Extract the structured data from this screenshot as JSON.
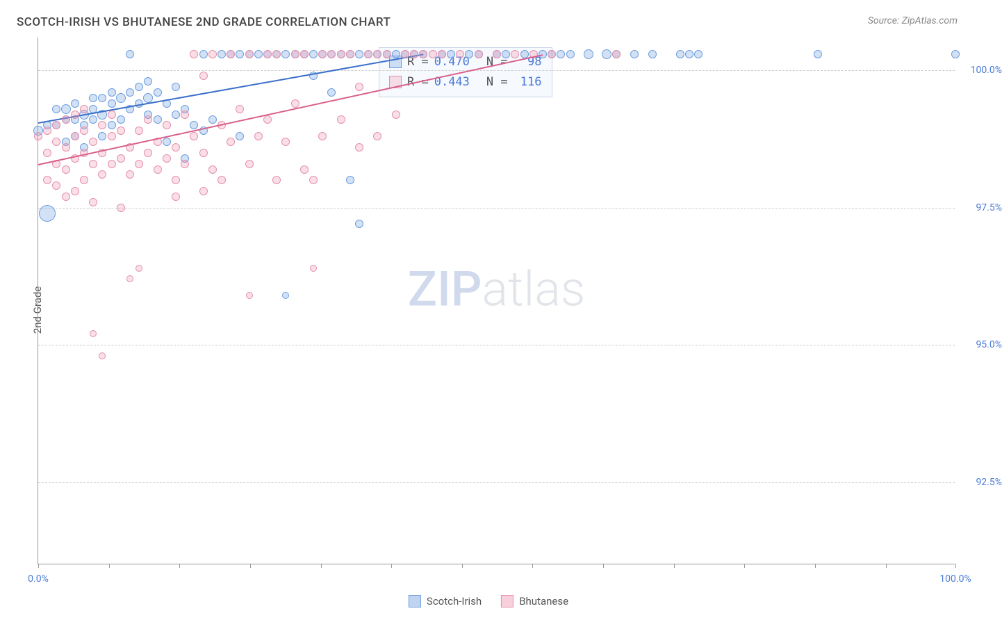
{
  "title": "SCOTCH-IRISH VS BHUTANESE 2ND GRADE CORRELATION CHART",
  "source_label": "Source: ZipAtlas.com",
  "y_axis_label": "2nd Grade",
  "watermark": {
    "part1": "ZIP",
    "part2": "atlas"
  },
  "chart": {
    "type": "scatter",
    "background_color": "#ffffff",
    "grid_color": "#cccccc",
    "axis_color": "#999999",
    "xlim": [
      0,
      100
    ],
    "ylim": [
      91.0,
      100.6
    ],
    "xticks": [
      0,
      7.7,
      15.4,
      23.1,
      30.8,
      38.5,
      46.2,
      53.9,
      61.6,
      69.3,
      77.0,
      84.7,
      92.4,
      100
    ],
    "xtick_labels": {
      "0": "0.0%",
      "100": "100.0%"
    },
    "yticks": [
      92.5,
      95.0,
      97.5,
      100.0
    ],
    "ytick_labels": [
      "92.5%",
      "95.0%",
      "97.5%",
      "100.0%"
    ],
    "tick_label_color": "#4a7bd8",
    "tick_label_fontsize": 14,
    "series": [
      {
        "name": "Scotch-Irish",
        "marker_fill": "rgba(130,170,225,0.35)",
        "marker_stroke": "#6c9de0",
        "trend_color": "#3a6fc9",
        "trend": {
          "x1": 0,
          "y1": 99.05,
          "x2": 42,
          "y2": 100.3
        },
        "stats": {
          "R": "0.470",
          "N": "98"
        },
        "points": [
          [
            0,
            98.9,
            14
          ],
          [
            1,
            97.4,
            24
          ],
          [
            1,
            99.0,
            12
          ],
          [
            2,
            99.0,
            12
          ],
          [
            2,
            99.3,
            12
          ],
          [
            3,
            98.7,
            12
          ],
          [
            3,
            99.1,
            12
          ],
          [
            3,
            99.3,
            14
          ],
          [
            4,
            98.8,
            12
          ],
          [
            4,
            99.1,
            12
          ],
          [
            4,
            99.4,
            12
          ],
          [
            5,
            98.6,
            12
          ],
          [
            5,
            99.0,
            12
          ],
          [
            5,
            99.2,
            14
          ],
          [
            6,
            99.1,
            12
          ],
          [
            6,
            99.3,
            12
          ],
          [
            6,
            99.5,
            12
          ],
          [
            7,
            98.8,
            12
          ],
          [
            7,
            99.2,
            14
          ],
          [
            7,
            99.5,
            12
          ],
          [
            8,
            99.0,
            12
          ],
          [
            8,
            99.4,
            12
          ],
          [
            8,
            99.6,
            12
          ],
          [
            9,
            99.1,
            12
          ],
          [
            9,
            99.5,
            14
          ],
          [
            10,
            99.3,
            12
          ],
          [
            10,
            99.6,
            12
          ],
          [
            10,
            100.3,
            12
          ],
          [
            11,
            99.4,
            12
          ],
          [
            11,
            99.7,
            12
          ],
          [
            12,
            99.2,
            12
          ],
          [
            12,
            99.5,
            14
          ],
          [
            12,
            99.8,
            12
          ],
          [
            13,
            99.1,
            12
          ],
          [
            13,
            99.6,
            12
          ],
          [
            14,
            98.7,
            12
          ],
          [
            14,
            99.4,
            12
          ],
          [
            15,
            99.2,
            12
          ],
          [
            15,
            99.7,
            12
          ],
          [
            16,
            98.4,
            12
          ],
          [
            16,
            99.3,
            12
          ],
          [
            17,
            99.0,
            12
          ],
          [
            18,
            98.9,
            12
          ],
          [
            18,
            100.3,
            12
          ],
          [
            19,
            99.1,
            12
          ],
          [
            20,
            100.3,
            12
          ],
          [
            21,
            100.3,
            12
          ],
          [
            22,
            98.8,
            12
          ],
          [
            22,
            100.3,
            12
          ],
          [
            23,
            100.3,
            12
          ],
          [
            24,
            100.3,
            12
          ],
          [
            25,
            100.3,
            12
          ],
          [
            26,
            100.3,
            12
          ],
          [
            27,
            95.9,
            10
          ],
          [
            27,
            100.3,
            12
          ],
          [
            28,
            100.3,
            12
          ],
          [
            29,
            100.3,
            12
          ],
          [
            30,
            99.9,
            12
          ],
          [
            30,
            100.3,
            12
          ],
          [
            31,
            100.3,
            12
          ],
          [
            32,
            99.6,
            12
          ],
          [
            32,
            100.3,
            12
          ],
          [
            33,
            100.3,
            12
          ],
          [
            34,
            98.0,
            12
          ],
          [
            34,
            100.3,
            12
          ],
          [
            35,
            97.2,
            12
          ],
          [
            35,
            100.3,
            12
          ],
          [
            36,
            100.3,
            12
          ],
          [
            37,
            100.3,
            12
          ],
          [
            38,
            100.3,
            12
          ],
          [
            39,
            100.3,
            12
          ],
          [
            40,
            100.3,
            12
          ],
          [
            41,
            100.3,
            12
          ],
          [
            42,
            100.3,
            12
          ],
          [
            44,
            100.3,
            12
          ],
          [
            45,
            100.3,
            12
          ],
          [
            47,
            100.3,
            12
          ],
          [
            48,
            100.3,
            12
          ],
          [
            50,
            100.3,
            12
          ],
          [
            51,
            100.3,
            12
          ],
          [
            53,
            100.3,
            12
          ],
          [
            55,
            100.3,
            12
          ],
          [
            56,
            100.3,
            12
          ],
          [
            57,
            100.3,
            12
          ],
          [
            58,
            100.3,
            12
          ],
          [
            60,
            100.3,
            14
          ],
          [
            62,
            100.3,
            14
          ],
          [
            63,
            100.3,
            12
          ],
          [
            65,
            100.3,
            12
          ],
          [
            67,
            100.3,
            12
          ],
          [
            70,
            100.3,
            12
          ],
          [
            71,
            100.3,
            12
          ],
          [
            72,
            100.3,
            12
          ],
          [
            85,
            100.3,
            12
          ],
          [
            100,
            100.3,
            12
          ]
        ]
      },
      {
        "name": "Bhutanese",
        "marker_fill": "rgba(240,150,175,0.30)",
        "marker_stroke": "#e590ab",
        "trend_color": "#d85f8a",
        "trend": {
          "x1": 0,
          "y1": 98.3,
          "x2": 55,
          "y2": 100.3
        },
        "stats": {
          "R": "0.443",
          "N": "116"
        },
        "points": [
          [
            0,
            98.8,
            12
          ],
          [
            1,
            98.0,
            12
          ],
          [
            1,
            98.5,
            12
          ],
          [
            1,
            98.9,
            12
          ],
          [
            2,
            97.9,
            12
          ],
          [
            2,
            98.3,
            12
          ],
          [
            2,
            98.7,
            12
          ],
          [
            2,
            99.0,
            12
          ],
          [
            3,
            97.7,
            12
          ],
          [
            3,
            98.2,
            12
          ],
          [
            3,
            98.6,
            12
          ],
          [
            3,
            99.1,
            12
          ],
          [
            4,
            97.8,
            12
          ],
          [
            4,
            98.4,
            12
          ],
          [
            4,
            98.8,
            12
          ],
          [
            4,
            99.2,
            12
          ],
          [
            5,
            98.0,
            12
          ],
          [
            5,
            98.5,
            12
          ],
          [
            5,
            98.9,
            12
          ],
          [
            5,
            99.3,
            12
          ],
          [
            6,
            95.2,
            10
          ],
          [
            6,
            97.6,
            12
          ],
          [
            6,
            98.3,
            12
          ],
          [
            6,
            98.7,
            12
          ],
          [
            7,
            94.8,
            10
          ],
          [
            7,
            98.1,
            12
          ],
          [
            7,
            98.5,
            12
          ],
          [
            7,
            99.0,
            12
          ],
          [
            8,
            98.3,
            12
          ],
          [
            8,
            98.8,
            12
          ],
          [
            8,
            99.2,
            12
          ],
          [
            9,
            97.5,
            12
          ],
          [
            9,
            98.4,
            12
          ],
          [
            9,
            98.9,
            12
          ],
          [
            10,
            96.2,
            10
          ],
          [
            10,
            98.1,
            12
          ],
          [
            10,
            98.6,
            12
          ],
          [
            11,
            98.3,
            12
          ],
          [
            11,
            98.9,
            12
          ],
          [
            11,
            96.4,
            10
          ],
          [
            12,
            98.5,
            12
          ],
          [
            12,
            99.1,
            12
          ],
          [
            13,
            98.2,
            12
          ],
          [
            13,
            98.7,
            12
          ],
          [
            14,
            98.4,
            12
          ],
          [
            14,
            99.0,
            12
          ],
          [
            15,
            98.0,
            12
          ],
          [
            15,
            97.7,
            12
          ],
          [
            15,
            98.6,
            12
          ],
          [
            16,
            98.3,
            12
          ],
          [
            16,
            99.2,
            12
          ],
          [
            17,
            98.8,
            12
          ],
          [
            17,
            100.3,
            12
          ],
          [
            18,
            97.8,
            12
          ],
          [
            18,
            98.5,
            12
          ],
          [
            18,
            99.9,
            12
          ],
          [
            19,
            98.2,
            12
          ],
          [
            19,
            100.3,
            12
          ],
          [
            20,
            98.0,
            12
          ],
          [
            20,
            99.0,
            12
          ],
          [
            21,
            98.7,
            12
          ],
          [
            21,
            100.3,
            12
          ],
          [
            22,
            99.3,
            12
          ],
          [
            23,
            95.9,
            10
          ],
          [
            23,
            98.3,
            12
          ],
          [
            23,
            100.3,
            12
          ],
          [
            24,
            98.8,
            12
          ],
          [
            25,
            99.1,
            12
          ],
          [
            25,
            100.3,
            12
          ],
          [
            26,
            98.0,
            12
          ],
          [
            26,
            100.3,
            12
          ],
          [
            27,
            98.7,
            12
          ],
          [
            28,
            99.4,
            12
          ],
          [
            28,
            100.3,
            12
          ],
          [
            29,
            98.2,
            12
          ],
          [
            29,
            100.3,
            12
          ],
          [
            30,
            96.4,
            10
          ],
          [
            30,
            98.0,
            12
          ],
          [
            31,
            98.8,
            12
          ],
          [
            31,
            100.3,
            12
          ],
          [
            32,
            100.3,
            12
          ],
          [
            33,
            99.1,
            12
          ],
          [
            33,
            100.3,
            12
          ],
          [
            34,
            100.3,
            12
          ],
          [
            35,
            98.6,
            12
          ],
          [
            35,
            99.7,
            12
          ],
          [
            36,
            100.3,
            12
          ],
          [
            37,
            98.8,
            12
          ],
          [
            37,
            100.3,
            12
          ],
          [
            38,
            100.3,
            12
          ],
          [
            39,
            99.2,
            12
          ],
          [
            40,
            100.3,
            12
          ],
          [
            41,
            100.3,
            12
          ],
          [
            42,
            100.3,
            12
          ],
          [
            43,
            100.3,
            12
          ],
          [
            44,
            100.3,
            12
          ],
          [
            46,
            100.3,
            12
          ],
          [
            48,
            100.3,
            12
          ],
          [
            50,
            100.3,
            12
          ],
          [
            52,
            100.3,
            12
          ],
          [
            54,
            100.3,
            12
          ],
          [
            56,
            100.3,
            12
          ],
          [
            63,
            100.3,
            12
          ]
        ]
      }
    ]
  },
  "stats_legend": {
    "R_label": "R =",
    "N_label": "N ="
  },
  "bottom_legend": [
    {
      "label": "Scotch-Irish",
      "fill": "rgba(130,170,225,0.5)",
      "stroke": "#6c9de0"
    },
    {
      "label": "Bhutanese",
      "fill": "rgba(240,150,175,0.45)",
      "stroke": "#e590ab"
    }
  ]
}
